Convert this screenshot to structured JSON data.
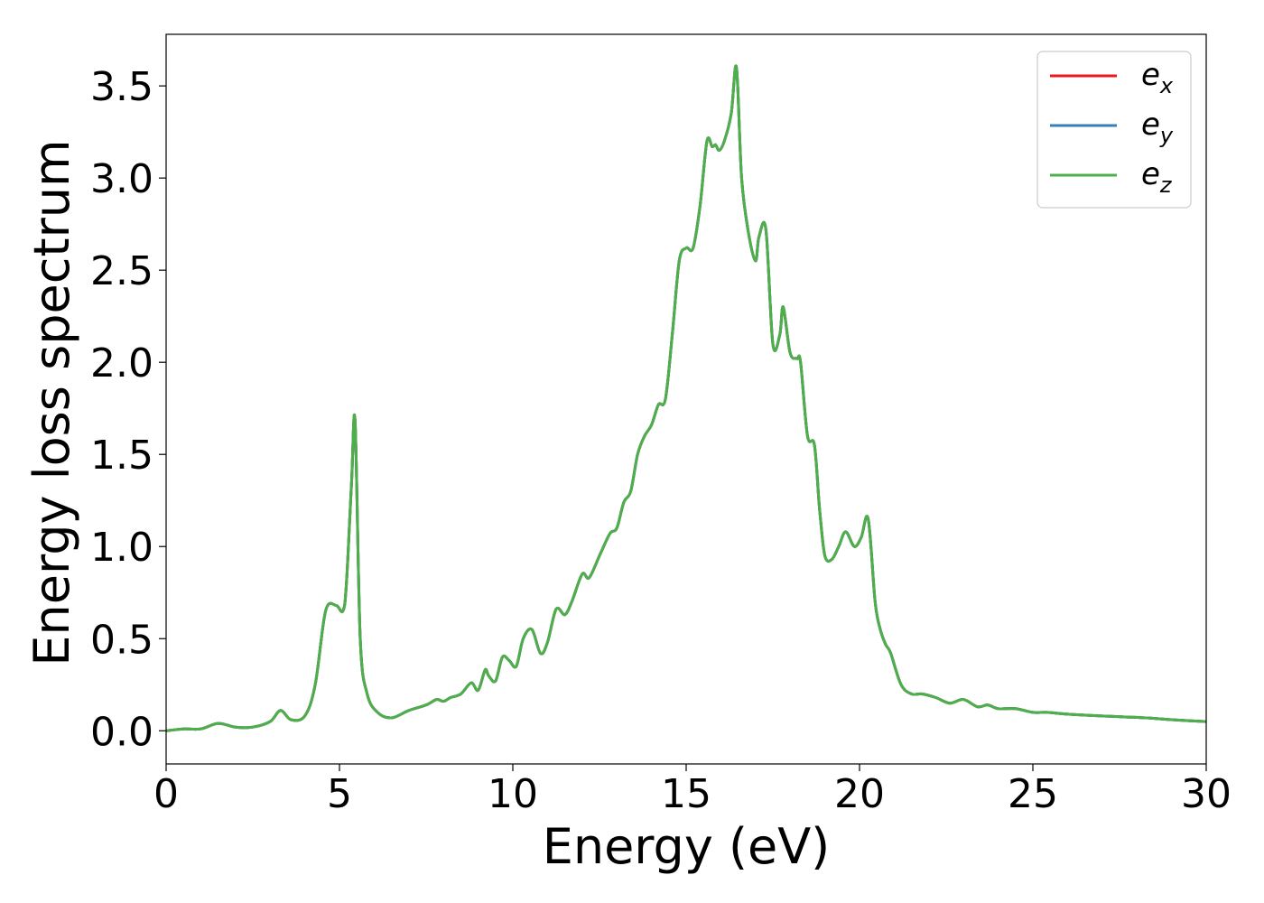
{
  "chart_data": {
    "type": "line",
    "title": "",
    "xlabel": "Energy (eV)",
    "ylabel": "Energy loss spectrum",
    "xlim": [
      0,
      30
    ],
    "ylim": [
      -0.18,
      3.78
    ],
    "xticks": [
      0,
      5,
      10,
      15,
      20,
      25,
      30
    ],
    "xtick_labels": [
      "0",
      "5",
      "10",
      "15",
      "20",
      "25",
      "30"
    ],
    "yticks": [
      0.0,
      0.5,
      1.0,
      1.5,
      2.0,
      2.5,
      3.0,
      3.5
    ],
    "ytick_labels": [
      "0.0",
      "0.5",
      "1.0",
      "1.5",
      "2.0",
      "2.5",
      "3.0",
      "3.5"
    ],
    "grid": false,
    "legend_position": "top-right",
    "x": [
      0,
      0.5,
      1.0,
      1.5,
      2.0,
      2.5,
      3.0,
      3.3,
      3.6,
      4.0,
      4.3,
      4.6,
      4.9,
      5.1,
      5.2,
      5.35,
      5.45,
      5.6,
      5.8,
      6.1,
      6.5,
      7.0,
      7.5,
      7.8,
      8.0,
      8.2,
      8.5,
      8.8,
      9.0,
      9.2,
      9.3,
      9.5,
      9.7,
      9.9,
      10.1,
      10.3,
      10.55,
      10.8,
      11.0,
      11.25,
      11.5,
      11.7,
      12.0,
      12.2,
      12.5,
      12.8,
      13.0,
      13.2,
      13.4,
      13.6,
      13.8,
      14.0,
      14.2,
      14.4,
      14.6,
      14.8,
      15.0,
      15.2,
      15.4,
      15.6,
      15.75,
      15.85,
      15.95,
      16.1,
      16.3,
      16.45,
      16.6,
      16.8,
      17.0,
      17.1,
      17.3,
      17.5,
      17.7,
      17.8,
      18.0,
      18.2,
      18.3,
      18.5,
      18.7,
      18.85,
      19.0,
      19.2,
      19.4,
      19.6,
      19.85,
      20.05,
      20.25,
      20.45,
      20.6,
      20.75,
      20.9,
      21.2,
      21.5,
      21.8,
      22.2,
      22.6,
      23.0,
      23.4,
      23.7,
      24.0,
      24.5,
      25.0,
      25.4,
      26.0,
      27.0,
      28.3,
      29.0,
      30.0
    ],
    "series": [
      {
        "name": "e_x",
        "color": "#e41a1c",
        "values": [
          0.0,
          0.01,
          0.01,
          0.04,
          0.02,
          0.02,
          0.05,
          0.11,
          0.06,
          0.08,
          0.25,
          0.65,
          0.68,
          0.65,
          0.8,
          1.35,
          1.68,
          0.5,
          0.2,
          0.1,
          0.07,
          0.11,
          0.14,
          0.17,
          0.16,
          0.18,
          0.2,
          0.26,
          0.22,
          0.33,
          0.3,
          0.27,
          0.4,
          0.38,
          0.35,
          0.5,
          0.55,
          0.42,
          0.48,
          0.66,
          0.63,
          0.7,
          0.85,
          0.83,
          0.95,
          1.07,
          1.1,
          1.24,
          1.3,
          1.5,
          1.6,
          1.66,
          1.77,
          1.8,
          2.15,
          2.55,
          2.62,
          2.62,
          2.85,
          3.2,
          3.17,
          3.18,
          3.15,
          3.2,
          3.35,
          3.6,
          3.0,
          2.7,
          2.55,
          2.68,
          2.72,
          2.1,
          2.15,
          2.3,
          2.05,
          2.02,
          2.0,
          1.6,
          1.55,
          1.2,
          0.95,
          0.93,
          1.0,
          1.08,
          1.0,
          1.05,
          1.15,
          0.7,
          0.55,
          0.47,
          0.42,
          0.25,
          0.2,
          0.2,
          0.18,
          0.15,
          0.17,
          0.13,
          0.14,
          0.12,
          0.12,
          0.1,
          0.1,
          0.09,
          0.08,
          0.07,
          0.06,
          0.05
        ]
      },
      {
        "name": "e_y",
        "color": "#377eb8",
        "values": [
          0.0,
          0.01,
          0.01,
          0.04,
          0.02,
          0.02,
          0.05,
          0.11,
          0.06,
          0.08,
          0.25,
          0.65,
          0.68,
          0.65,
          0.8,
          1.35,
          1.68,
          0.5,
          0.2,
          0.1,
          0.07,
          0.11,
          0.14,
          0.17,
          0.16,
          0.18,
          0.2,
          0.26,
          0.22,
          0.33,
          0.3,
          0.27,
          0.4,
          0.38,
          0.35,
          0.5,
          0.55,
          0.42,
          0.48,
          0.66,
          0.63,
          0.7,
          0.85,
          0.83,
          0.95,
          1.07,
          1.1,
          1.24,
          1.3,
          1.5,
          1.6,
          1.66,
          1.77,
          1.8,
          2.15,
          2.55,
          2.62,
          2.62,
          2.85,
          3.2,
          3.17,
          3.18,
          3.15,
          3.2,
          3.35,
          3.6,
          3.0,
          2.7,
          2.55,
          2.68,
          2.72,
          2.1,
          2.15,
          2.3,
          2.05,
          2.02,
          2.0,
          1.6,
          1.55,
          1.2,
          0.95,
          0.93,
          1.0,
          1.08,
          1.0,
          1.05,
          1.15,
          0.7,
          0.55,
          0.47,
          0.42,
          0.25,
          0.2,
          0.2,
          0.18,
          0.15,
          0.17,
          0.13,
          0.14,
          0.12,
          0.12,
          0.1,
          0.1,
          0.09,
          0.08,
          0.07,
          0.06,
          0.05
        ]
      },
      {
        "name": "e_z",
        "color": "#4daf4a",
        "values": [
          0.0,
          0.01,
          0.01,
          0.04,
          0.02,
          0.02,
          0.05,
          0.11,
          0.06,
          0.08,
          0.25,
          0.65,
          0.68,
          0.65,
          0.8,
          1.35,
          1.68,
          0.5,
          0.2,
          0.1,
          0.07,
          0.11,
          0.14,
          0.17,
          0.16,
          0.18,
          0.2,
          0.26,
          0.22,
          0.33,
          0.3,
          0.27,
          0.4,
          0.38,
          0.35,
          0.5,
          0.55,
          0.42,
          0.48,
          0.66,
          0.63,
          0.7,
          0.85,
          0.83,
          0.95,
          1.07,
          1.1,
          1.24,
          1.3,
          1.5,
          1.6,
          1.66,
          1.77,
          1.8,
          2.15,
          2.55,
          2.62,
          2.62,
          2.85,
          3.2,
          3.17,
          3.18,
          3.15,
          3.2,
          3.35,
          3.6,
          3.0,
          2.7,
          2.55,
          2.68,
          2.72,
          2.1,
          2.15,
          2.3,
          2.05,
          2.02,
          2.0,
          1.6,
          1.55,
          1.2,
          0.95,
          0.93,
          1.0,
          1.08,
          1.0,
          1.05,
          1.15,
          0.7,
          0.55,
          0.47,
          0.42,
          0.25,
          0.2,
          0.2,
          0.18,
          0.15,
          0.17,
          0.13,
          0.14,
          0.12,
          0.12,
          0.1,
          0.1,
          0.09,
          0.08,
          0.07,
          0.06,
          0.05
        ]
      }
    ],
    "legend": [
      {
        "base": "e",
        "sub": "x",
        "color": "#e41a1c"
      },
      {
        "base": "e",
        "sub": "y",
        "color": "#377eb8"
      },
      {
        "base": "e",
        "sub": "z",
        "color": "#4daf4a"
      }
    ]
  }
}
